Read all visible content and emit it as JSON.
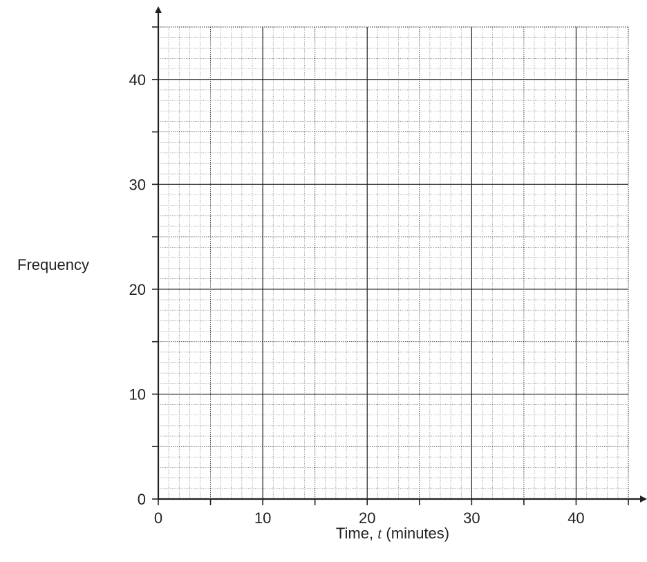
{
  "chart_data": {
    "type": "bar",
    "title": "",
    "xlabel_prefix": "Time, ",
    "xlabel_var": "t",
    "xlabel_suffix": " (minutes)",
    "ylabel": "Frequency",
    "xlim": [
      0,
      45
    ],
    "ylim": [
      0,
      45
    ],
    "x_ticks": [
      0,
      10,
      20,
      30,
      40
    ],
    "y_ticks": [
      0,
      10,
      20,
      30,
      40
    ],
    "x_tick_labels": [
      "0",
      "10",
      "20",
      "30",
      "40"
    ],
    "y_tick_labels": [
      "0",
      "10",
      "20",
      "30",
      "40"
    ],
    "grid": true,
    "series": [],
    "colors": {
      "axis": "#231f20",
      "grid_major": "#231f20",
      "grid_minor": "#231f20"
    }
  }
}
